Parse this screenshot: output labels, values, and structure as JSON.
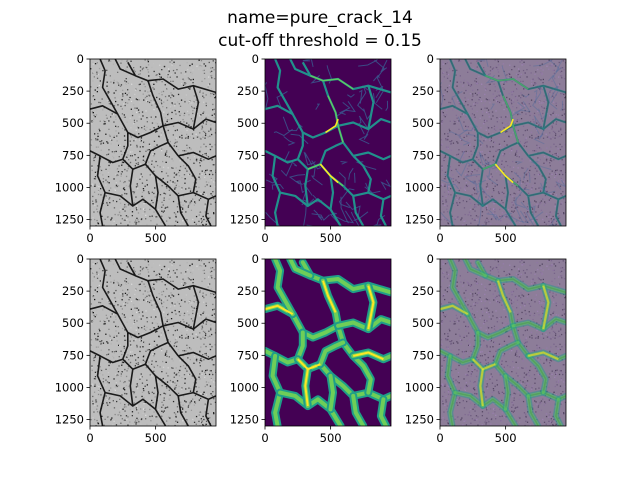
{
  "title_lines": [
    "name=pure_crack_14",
    "cut-off threshold = 0.15"
  ],
  "chart_data": {
    "type": "image-grid",
    "title": "name=pure_crack_14\ncut-off threshold = 0.15",
    "layout": {
      "rows": 2,
      "cols": 3
    },
    "image_size": {
      "width": 960,
      "height": 1300
    },
    "panels": [
      {
        "row": 0,
        "col": 0,
        "content": "input grayscale pavement image",
        "colormap": "gray"
      },
      {
        "row": 0,
        "col": 1,
        "content": "predicted crack probability map",
        "colormap": "viridis"
      },
      {
        "row": 0,
        "col": 2,
        "content": "prediction overlaid on input",
        "colormap": "viridis-overlay"
      },
      {
        "row": 1,
        "col": 0,
        "content": "input grayscale pavement image",
        "colormap": "gray"
      },
      {
        "row": 1,
        "col": 1,
        "content": "ground-truth crack mask",
        "colormap": "viridis"
      },
      {
        "row": 1,
        "col": 2,
        "content": "mask overlaid on input",
        "colormap": "viridis-overlay"
      }
    ],
    "xticks": [
      0,
      500
    ],
    "yticks": [
      0,
      250,
      500,
      750,
      1000,
      1250
    ],
    "xlim": [
      0,
      960
    ],
    "ylim": [
      1300,
      0
    ],
    "colors": {
      "viridis_low": "#440154",
      "viridis_mid": "#21918c",
      "viridis_high": "#fde725",
      "overlay_tint": "#8a6f9e",
      "asphalt": "#b9b9b9"
    }
  }
}
